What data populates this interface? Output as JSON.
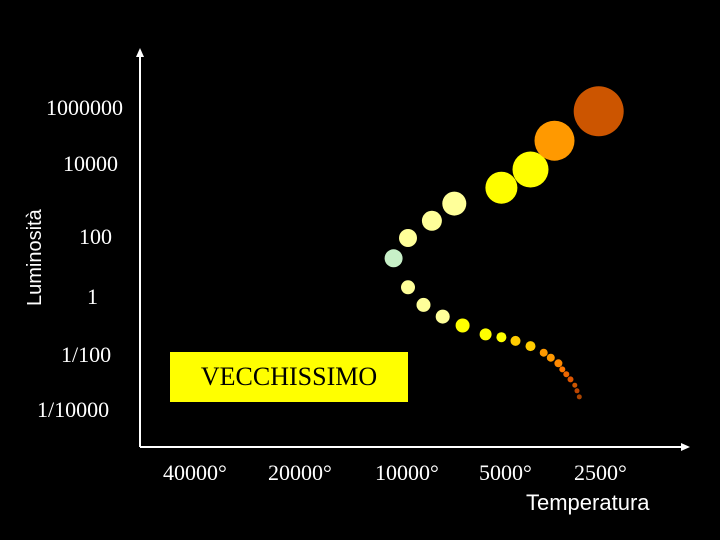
{
  "chart_data": {
    "type": "scatter",
    "title": "",
    "xlabel": "Temperatura",
    "ylabel": "Luminosità",
    "x_ticks": [
      "40000°",
      "20000°",
      "10000°",
      "5000°",
      "2500°"
    ],
    "y_ticks": [
      "1000000",
      "10000",
      "100",
      "1",
      "1/100",
      "1/10000"
    ],
    "annotation": "VECCHISSIMO",
    "annotation_color": "#ffff00",
    "axis_color": "#ffffff",
    "background": "#000000",
    "series": [
      {
        "points": [
          {
            "temperature": 11000,
            "luminosity": 20,
            "size": 9,
            "color": "#c8f0c8"
          },
          {
            "temperature": 10000,
            "luminosity": 100,
            "size": 9,
            "color": "#ffff99"
          },
          {
            "temperature": 8500,
            "luminosity": 300,
            "size": 10,
            "color": "#ffff99"
          },
          {
            "temperature": 7300,
            "luminosity": 900,
            "size": 12,
            "color": "#ffff99"
          },
          {
            "temperature": 5300,
            "luminosity": 2500,
            "size": 16,
            "color": "#ffff00"
          },
          {
            "temperature": 4300,
            "luminosity": 8000,
            "size": 18,
            "color": "#ffff00"
          },
          {
            "temperature": 3600,
            "luminosity": 80000,
            "size": 20,
            "color": "#ff9900"
          },
          {
            "temperature": 2600,
            "luminosity": 900000,
            "size": 25,
            "color": "#cc5500"
          }
        ]
      },
      {
        "points": [
          {
            "temperature": 10000,
            "luminosity": 2,
            "size": 7,
            "color": "#ffff99"
          },
          {
            "temperature": 9000,
            "luminosity": 0.5,
            "size": 7,
            "color": "#ffff99"
          },
          {
            "temperature": 7900,
            "luminosity": 0.2,
            "size": 7,
            "color": "#ffff99"
          },
          {
            "temperature": 6900,
            "luminosity": 0.1,
            "size": 7,
            "color": "#ffff00"
          },
          {
            "temperature": 5900,
            "luminosity": 0.05,
            "size": 6,
            "color": "#ffff00"
          },
          {
            "temperature": 5300,
            "luminosity": 0.04,
            "size": 5,
            "color": "#ffff00"
          },
          {
            "temperature": 4800,
            "luminosity": 0.03,
            "size": 5,
            "color": "#ffcc00"
          },
          {
            "temperature": 4300,
            "luminosity": 0.02,
            "size": 5,
            "color": "#ffcc00"
          },
          {
            "temperature": 3900,
            "luminosity": 0.012,
            "size": 4,
            "color": "#ff9900"
          },
          {
            "temperature": 3700,
            "luminosity": 0.008,
            "size": 4,
            "color": "#ff9900"
          },
          {
            "temperature": 3500,
            "luminosity": 0.005,
            "size": 4,
            "color": "#ff8800"
          },
          {
            "temperature": 3400,
            "luminosity": 0.003,
            "size": 3,
            "color": "#ff7700"
          },
          {
            "temperature": 3300,
            "luminosity": 0.002,
            "size": 3,
            "color": "#ee6600"
          },
          {
            "temperature": 3200,
            "luminosity": 0.0013,
            "size": 3,
            "color": "#dd5500"
          },
          {
            "temperature": 3100,
            "luminosity": 0.0008,
            "size": 2.5,
            "color": "#cc5500"
          },
          {
            "temperature": 3050,
            "luminosity": 0.0005,
            "size": 2.5,
            "color": "#bb4400"
          },
          {
            "temperature": 3000,
            "luminosity": 0.0003,
            "size": 2.5,
            "color": "#aa4400"
          }
        ]
      }
    ]
  }
}
